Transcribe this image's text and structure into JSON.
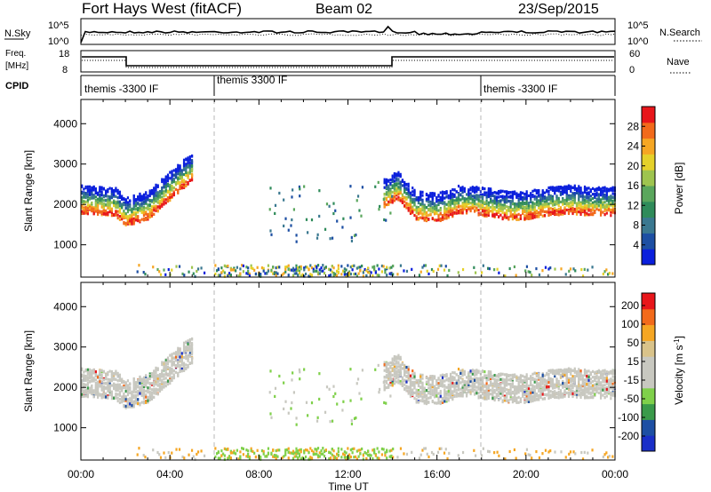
{
  "header": {
    "title": "Fort Hays West (fitACF)",
    "beam": "Beam 02",
    "date": "23/Sep/2015"
  },
  "noise_panel": {
    "left_label": "N.Sky",
    "left_ticks": [
      "10^5",
      "10^0"
    ],
    "right_label": "N.Search",
    "right_ticks": [
      "10^5",
      "10^0"
    ]
  },
  "freq_panel": {
    "left_label_line1": "Freq.",
    "left_label_line2": "[MHz]",
    "left_ticks": [
      "18",
      "8"
    ],
    "right_label": "Nave",
    "right_ticks": [
      "60",
      "0"
    ]
  },
  "cpid_panel": {
    "label": "CPID",
    "segments": [
      {
        "text": "themis -3300 IF",
        "start_hour": 0
      },
      {
        "text": "themis 3300 IF",
        "start_hour": 6
      },
      {
        "text": "themis -3300 IF",
        "start_hour": 18
      }
    ]
  },
  "x_axis": {
    "label": "Time UT",
    "ticks": [
      "00:00",
      "04:00",
      "08:00",
      "12:00",
      "16:00",
      "20:00",
      "00:00"
    ]
  },
  "colors": {
    "power": [
      "#0a1fdc",
      "#1d4fa3",
      "#3a7890",
      "#2f8b5a",
      "#5aa65c",
      "#9ec44f",
      "#e5d12a",
      "#f5a623",
      "#f26a1b",
      "#e8161b"
    ],
    "velocity": [
      "#e8161b",
      "#f26a1b",
      "#f5a623",
      "#d9c38a",
      "#c8c8c0",
      "#c8c8c0",
      "#7fd04a",
      "#3a9a4a",
      "#1d4fa3",
      "#1a2fc8"
    ],
    "ground_scatter": "#c8c8c0"
  },
  "chart_data": [
    {
      "type": "heatmap",
      "title": "Power",
      "ylabel": "Slant Range [km]",
      "xlabel": "Time UT",
      "xlim": [
        0,
        24
      ],
      "ylim": [
        200,
        4600
      ],
      "y_ticks": [
        "1000",
        "2000",
        "3000",
        "4000"
      ],
      "colorbar": {
        "label": "Power [dB]",
        "ticks": [
          "4",
          "8",
          "12",
          "16",
          "20",
          "24",
          "28"
        ],
        "range": [
          0,
          32
        ]
      },
      "band_centers": [
        [
          0,
          2050
        ],
        [
          1.5,
          2000
        ],
        [
          2.0,
          1750
        ],
        [
          3.0,
          1900
        ],
        [
          4.5,
          2650
        ],
        [
          5.0,
          2850
        ]
      ],
      "band_centers_late": [
        [
          13.6,
          2200
        ],
        [
          14.2,
          2400
        ],
        [
          15.0,
          1900
        ],
        [
          16.0,
          1850
        ],
        [
          17.0,
          2050
        ],
        [
          18.0,
          2000
        ],
        [
          19.0,
          1900
        ],
        [
          20.0,
          1900
        ],
        [
          21.0,
          2000
        ],
        [
          22.0,
          2050
        ],
        [
          23.0,
          2000
        ],
        [
          24.0,
          2000
        ]
      ]
    },
    {
      "type": "heatmap",
      "title": "Velocity",
      "ylabel": "Slant Range [km]",
      "xlabel": "Time UT",
      "xlim": [
        0,
        24
      ],
      "ylim": [
        200,
        4600
      ],
      "y_ticks": [
        "1000",
        "2000",
        "3000",
        "4000"
      ],
      "colorbar": {
        "label": "Velocity [m s-1]",
        "ticks": [
          "200",
          "100",
          "50",
          "15",
          "-15",
          "-50",
          "-100",
          "-200"
        ],
        "range": [
          -250,
          250
        ]
      }
    }
  ]
}
